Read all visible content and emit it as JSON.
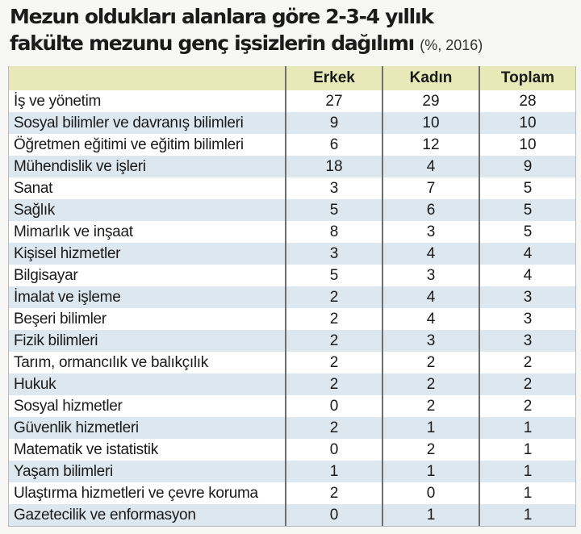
{
  "title": {
    "line1": "Mezun oldukları alanlara göre 2-3-4 yıllık",
    "line2": "fakülte mezunu genç işsizlerin dağılımı",
    "subtitle": "(%, 2016)"
  },
  "colors": {
    "header_bg": "#e7eab8",
    "alt_row_bg": "#dde7ef",
    "row_bg": "#ffffff"
  },
  "chart_data": {
    "type": "table",
    "title": "Mezun oldukları alanlara göre 2-3-4 yıllık fakülte mezunu genç işsizlerin dağılımı (%, 2016)",
    "columns": [
      "",
      "Erkek",
      "Kadın",
      "Toplam"
    ],
    "rows": [
      [
        "İş ve yönetim",
        27,
        29,
        28
      ],
      [
        "Sosyal bilimler ve davranış bilimleri",
        9,
        10,
        10
      ],
      [
        "Öğretmen eğitimi ve eğitim bilimleri",
        6,
        12,
        10
      ],
      [
        "Mühendislik ve işleri",
        18,
        4,
        9
      ],
      [
        "Sanat",
        3,
        7,
        5
      ],
      [
        "Sağlık",
        5,
        6,
        5
      ],
      [
        "Mimarlık ve inşaat",
        8,
        3,
        5
      ],
      [
        "Kişisel hizmetler",
        3,
        4,
        4
      ],
      [
        "Bilgisayar",
        5,
        3,
        4
      ],
      [
        "İmalat ve işleme",
        2,
        4,
        3
      ],
      [
        "Beşeri bilimler",
        2,
        4,
        3
      ],
      [
        "Fizik bilimleri",
        2,
        3,
        3
      ],
      [
        "Tarım, ormancılık ve balıkçılık",
        2,
        2,
        2
      ],
      [
        "Hukuk",
        2,
        2,
        2
      ],
      [
        "Sosyal hizmetler",
        0,
        2,
        2
      ],
      [
        "Güvenlik hizmetleri",
        2,
        1,
        1
      ],
      [
        "Matematik ve istatistik",
        0,
        2,
        1
      ],
      [
        "Yaşam bilimleri",
        1,
        1,
        1
      ],
      [
        "Ulaştırma hizmetleri ve çevre koruma",
        2,
        0,
        1
      ],
      [
        "Gazetecilik ve enformasyon",
        0,
        1,
        1
      ]
    ]
  }
}
